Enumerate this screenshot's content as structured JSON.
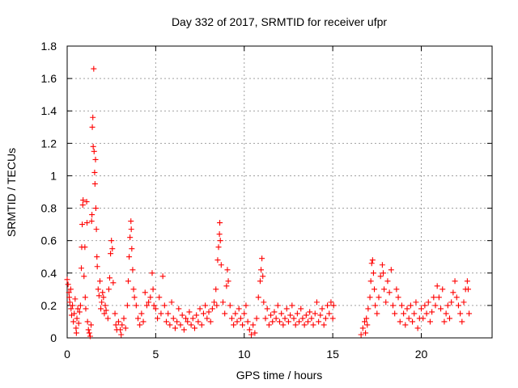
{
  "chart_data": {
    "type": "scatter",
    "title": "Day 332 of 2017, SRMTID for receiver ufpr",
    "xlabel": "GPS time / hours",
    "ylabel": "SRMTID / TECUs",
    "xlim": [
      0,
      24
    ],
    "ylim": [
      0,
      1.8
    ],
    "xticks": [
      0,
      5,
      10,
      15,
      20
    ],
    "xtick_labels": [
      "0",
      "5",
      "10",
      "15",
      "20"
    ],
    "yticks": [
      0,
      0.2,
      0.4,
      0.6,
      0.8,
      1.0,
      1.2,
      1.4,
      1.6,
      1.8
    ],
    "ytick_labels": [
      "0",
      "0.2",
      "0.4",
      "0.6",
      "0.8",
      "1",
      "1.2",
      "1.4",
      "1.6",
      "1.8"
    ],
    "grid": true,
    "marker": "+",
    "color": "#ff0000",
    "series": [
      {
        "name": "SRMTID",
        "points": [
          [
            0.0,
            0.36
          ],
          [
            0.05,
            0.33
          ],
          [
            0.1,
            0.28
          ],
          [
            0.12,
            0.25
          ],
          [
            0.15,
            0.22
          ],
          [
            0.2,
            0.3
          ],
          [
            0.22,
            0.18
          ],
          [
            0.25,
            0.14
          ],
          [
            0.3,
            0.2
          ],
          [
            0.35,
            0.1
          ],
          [
            0.4,
            0.15
          ],
          [
            0.45,
            0.24
          ],
          [
            0.5,
            0.06
          ],
          [
            0.52,
            0.03
          ],
          [
            0.55,
            0.12
          ],
          [
            0.6,
            0.18
          ],
          [
            0.65,
            0.09
          ],
          [
            0.7,
            0.16
          ],
          [
            0.75,
            0.2
          ],
          [
            0.8,
            0.43
          ],
          [
            0.82,
            0.56
          ],
          [
            0.85,
            0.7
          ],
          [
            0.88,
            0.82
          ],
          [
            0.9,
            0.85
          ],
          [
            0.95,
            0.38
          ],
          [
            1.0,
            0.56
          ],
          [
            1.02,
            0.25
          ],
          [
            1.05,
            0.18
          ],
          [
            1.1,
            0.84
          ],
          [
            1.12,
            0.71
          ],
          [
            1.15,
            0.1
          ],
          [
            1.2,
            0.05
          ],
          [
            1.25,
            0.03
          ],
          [
            1.3,
            0.01
          ],
          [
            1.35,
            0.08
          ],
          [
            1.38,
            0.72
          ],
          [
            1.4,
            0.76
          ],
          [
            1.42,
            1.3
          ],
          [
            1.45,
            1.36
          ],
          [
            1.47,
            1.18
          ],
          [
            1.5,
            1.66
          ],
          [
            1.52,
            1.15
          ],
          [
            1.55,
            1.02
          ],
          [
            1.57,
            0.95
          ],
          [
            1.6,
            1.1
          ],
          [
            1.62,
            0.8
          ],
          [
            1.65,
            0.67
          ],
          [
            1.68,
            0.5
          ],
          [
            1.7,
            0.44
          ],
          [
            1.75,
            0.3
          ],
          [
            1.8,
            0.26
          ],
          [
            1.85,
            0.35
          ],
          [
            1.9,
            0.18
          ],
          [
            1.95,
            0.22
          ],
          [
            2.0,
            0.28
          ],
          [
            2.05,
            0.25
          ],
          [
            2.1,
            0.15
          ],
          [
            2.15,
            0.2
          ],
          [
            2.2,
            0.17
          ],
          [
            2.3,
            0.12
          ],
          [
            2.35,
            0.3
          ],
          [
            2.4,
            0.37
          ],
          [
            2.45,
            0.52
          ],
          [
            2.5,
            0.6
          ],
          [
            2.55,
            0.55
          ],
          [
            2.6,
            0.34
          ],
          [
            2.7,
            0.15
          ],
          [
            2.75,
            0.08
          ],
          [
            2.8,
            0.05
          ],
          [
            2.9,
            0.1
          ],
          [
            3.0,
            0.05
          ],
          [
            3.05,
            0.02
          ],
          [
            3.1,
            0.08
          ],
          [
            3.2,
            0.12
          ],
          [
            3.3,
            0.06
          ],
          [
            3.4,
            0.2
          ],
          [
            3.45,
            0.35
          ],
          [
            3.5,
            0.5
          ],
          [
            3.55,
            0.62
          ],
          [
            3.6,
            0.72
          ],
          [
            3.62,
            0.67
          ],
          [
            3.65,
            0.55
          ],
          [
            3.7,
            0.42
          ],
          [
            3.75,
            0.3
          ],
          [
            3.8,
            0.25
          ],
          [
            3.9,
            0.2
          ],
          [
            4.0,
            0.12
          ],
          [
            4.1,
            0.08
          ],
          [
            4.2,
            0.15
          ],
          [
            4.3,
            0.1
          ],
          [
            4.4,
            0.28
          ],
          [
            4.5,
            0.2
          ],
          [
            4.6,
            0.22
          ],
          [
            4.7,
            0.25
          ],
          [
            4.8,
            0.4
          ],
          [
            4.85,
            0.3
          ],
          [
            4.9,
            0.2
          ],
          [
            5.0,
            0.18
          ],
          [
            5.1,
            0.12
          ],
          [
            5.2,
            0.25
          ],
          [
            5.3,
            0.15
          ],
          [
            5.4,
            0.38
          ],
          [
            5.5,
            0.2
          ],
          [
            5.6,
            0.1
          ],
          [
            5.7,
            0.15
          ],
          [
            5.8,
            0.08
          ],
          [
            5.9,
            0.22
          ],
          [
            6.0,
            0.12
          ],
          [
            6.1,
            0.06
          ],
          [
            6.2,
            0.1
          ],
          [
            6.3,
            0.18
          ],
          [
            6.4,
            0.08
          ],
          [
            6.5,
            0.14
          ],
          [
            6.6,
            0.05
          ],
          [
            6.7,
            0.12
          ],
          [
            6.8,
            0.1
          ],
          [
            6.9,
            0.16
          ],
          [
            7.0,
            0.08
          ],
          [
            7.1,
            0.12
          ],
          [
            7.2,
            0.06
          ],
          [
            7.3,
            0.14
          ],
          [
            7.4,
            0.1
          ],
          [
            7.5,
            0.18
          ],
          [
            7.6,
            0.08
          ],
          [
            7.7,
            0.15
          ],
          [
            7.8,
            0.2
          ],
          [
            7.9,
            0.12
          ],
          [
            8.0,
            0.16
          ],
          [
            8.1,
            0.1
          ],
          [
            8.2,
            0.18
          ],
          [
            8.3,
            0.22
          ],
          [
            8.4,
            0.3
          ],
          [
            8.45,
            0.2
          ],
          [
            8.5,
            0.48
          ],
          [
            8.55,
            0.56
          ],
          [
            8.6,
            0.64
          ],
          [
            8.62,
            0.71
          ],
          [
            8.65,
            0.6
          ],
          [
            8.7,
            0.45
          ],
          [
            8.8,
            0.22
          ],
          [
            8.9,
            0.15
          ],
          [
            9.0,
            0.32
          ],
          [
            9.05,
            0.42
          ],
          [
            9.1,
            0.35
          ],
          [
            9.2,
            0.2
          ],
          [
            9.3,
            0.12
          ],
          [
            9.4,
            0.08
          ],
          [
            9.5,
            0.15
          ],
          [
            9.6,
            0.1
          ],
          [
            9.7,
            0.18
          ],
          [
            9.8,
            0.12
          ],
          [
            9.9,
            0.08
          ],
          [
            10.0,
            0.15
          ],
          [
            10.1,
            0.2
          ],
          [
            10.2,
            0.1
          ],
          [
            10.3,
            0.05
          ],
          [
            10.4,
            0.02
          ],
          [
            10.5,
            0.08
          ],
          [
            10.6,
            0.03
          ],
          [
            10.7,
            0.12
          ],
          [
            10.8,
            0.25
          ],
          [
            10.9,
            0.35
          ],
          [
            10.95,
            0.42
          ],
          [
            11.0,
            0.49
          ],
          [
            11.05,
            0.38
          ],
          [
            11.1,
            0.22
          ],
          [
            11.2,
            0.12
          ],
          [
            11.3,
            0.18
          ],
          [
            11.4,
            0.08
          ],
          [
            11.5,
            0.14
          ],
          [
            11.6,
            0.1
          ],
          [
            11.7,
            0.16
          ],
          [
            11.8,
            0.12
          ],
          [
            11.9,
            0.2
          ],
          [
            12.0,
            0.1
          ],
          [
            12.1,
            0.15
          ],
          [
            12.2,
            0.08
          ],
          [
            12.3,
            0.12
          ],
          [
            12.4,
            0.18
          ],
          [
            12.5,
            0.1
          ],
          [
            12.6,
            0.14
          ],
          [
            12.7,
            0.2
          ],
          [
            12.8,
            0.12
          ],
          [
            12.9,
            0.08
          ],
          [
            13.0,
            0.15
          ],
          [
            13.1,
            0.1
          ],
          [
            13.2,
            0.18
          ],
          [
            13.3,
            0.12
          ],
          [
            13.4,
            0.08
          ],
          [
            13.5,
            0.14
          ],
          [
            13.6,
            0.1
          ],
          [
            13.7,
            0.16
          ],
          [
            13.8,
            0.12
          ],
          [
            13.9,
            0.08
          ],
          [
            14.0,
            0.15
          ],
          [
            14.1,
            0.22
          ],
          [
            14.2,
            0.1
          ],
          [
            14.3,
            0.14
          ],
          [
            14.4,
            0.18
          ],
          [
            14.5,
            0.08
          ],
          [
            14.6,
            0.12
          ],
          [
            14.7,
            0.2
          ],
          [
            14.8,
            0.15
          ],
          [
            14.9,
            0.22
          ],
          [
            15.0,
            0.12
          ],
          [
            15.05,
            0.2
          ],
          [
            16.6,
            0.02
          ],
          [
            16.7,
            0.06
          ],
          [
            16.8,
            0.1
          ],
          [
            16.85,
            0.03
          ],
          [
            16.9,
            0.12
          ],
          [
            16.95,
            0.08
          ],
          [
            17.0,
            0.18
          ],
          [
            17.1,
            0.25
          ],
          [
            17.15,
            0.35
          ],
          [
            17.2,
            0.46
          ],
          [
            17.25,
            0.48
          ],
          [
            17.3,
            0.4
          ],
          [
            17.35,
            0.3
          ],
          [
            17.4,
            0.2
          ],
          [
            17.5,
            0.15
          ],
          [
            17.6,
            0.25
          ],
          [
            17.7,
            0.38
          ],
          [
            17.8,
            0.45
          ],
          [
            17.85,
            0.4
          ],
          [
            17.9,
            0.3
          ],
          [
            18.0,
            0.22
          ],
          [
            18.1,
            0.35
          ],
          [
            18.2,
            0.28
          ],
          [
            18.3,
            0.42
          ],
          [
            18.4,
            0.2
          ],
          [
            18.5,
            0.15
          ],
          [
            18.6,
            0.3
          ],
          [
            18.7,
            0.25
          ],
          [
            18.8,
            0.1
          ],
          [
            18.9,
            0.2
          ],
          [
            19.0,
            0.15
          ],
          [
            19.1,
            0.08
          ],
          [
            19.2,
            0.18
          ],
          [
            19.3,
            0.12
          ],
          [
            19.4,
            0.2
          ],
          [
            19.5,
            0.1
          ],
          [
            19.6,
            0.15
          ],
          [
            19.7,
            0.22
          ],
          [
            19.8,
            0.06
          ],
          [
            19.9,
            0.12
          ],
          [
            20.0,
            0.18
          ],
          [
            20.1,
            0.12
          ],
          [
            20.2,
            0.2
          ],
          [
            20.3,
            0.15
          ],
          [
            20.4,
            0.22
          ],
          [
            20.5,
            0.1
          ],
          [
            20.6,
            0.16
          ],
          [
            20.7,
            0.25
          ],
          [
            20.8,
            0.2
          ],
          [
            20.9,
            0.32
          ],
          [
            21.0,
            0.25
          ],
          [
            21.1,
            0.18
          ],
          [
            21.2,
            0.3
          ],
          [
            21.3,
            0.1
          ],
          [
            21.4,
            0.15
          ],
          [
            21.5,
            0.2
          ],
          [
            21.6,
            0.12
          ],
          [
            21.7,
            0.22
          ],
          [
            21.8,
            0.28
          ],
          [
            21.9,
            0.35
          ],
          [
            22.0,
            0.25
          ],
          [
            22.1,
            0.2
          ],
          [
            22.2,
            0.15
          ],
          [
            22.3,
            0.1
          ],
          [
            22.4,
            0.22
          ],
          [
            22.5,
            0.3
          ],
          [
            22.6,
            0.35
          ],
          [
            22.65,
            0.3
          ],
          [
            22.7,
            0.15
          ]
        ]
      }
    ]
  }
}
